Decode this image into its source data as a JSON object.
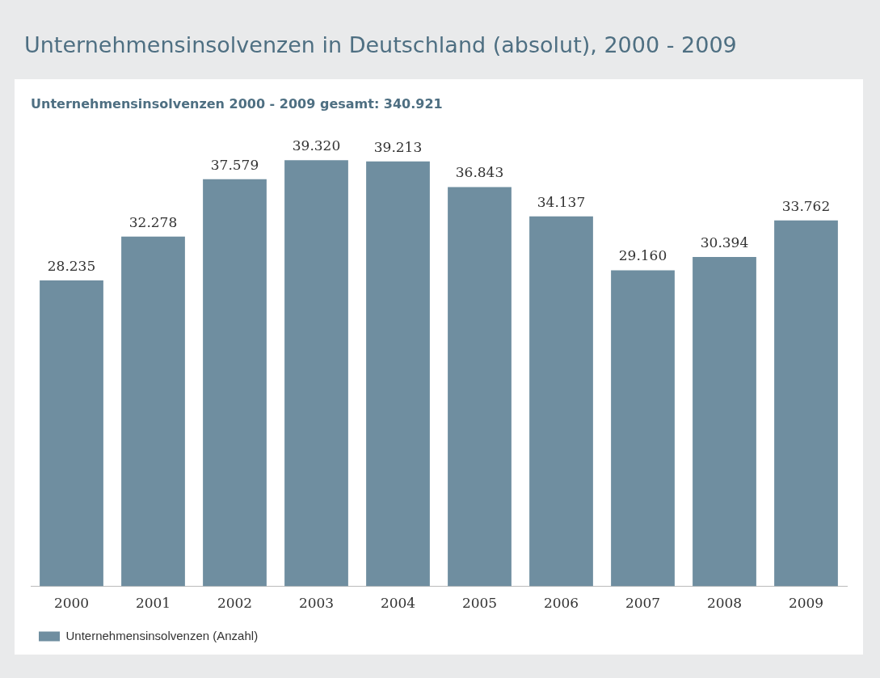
{
  "chart_data": {
    "type": "bar",
    "title": "Unternehmensinsolvenzen in Deutschland (absolut), 2000 - 2009",
    "subtitle": "Unternehmensinsolvenzen 2000 - 2009 gesamt: 340.921",
    "categories": [
      "2000",
      "2001",
      "2002",
      "2003",
      "2004",
      "2005",
      "2006",
      "2007",
      "2008",
      "2009"
    ],
    "series": [
      {
        "name": "Unternehmensinsolvenzen (Anzahl)",
        "color": "#6f8ea0",
        "values": [
          28235,
          32278,
          37579,
          39320,
          39213,
          36843,
          34137,
          29160,
          30394,
          33762
        ],
        "value_labels": [
          "28.235",
          "32.278",
          "37.579",
          "39.320",
          "39.213",
          "36.843",
          "34.137",
          "29.160",
          "30.394",
          "33.762"
        ]
      }
    ],
    "legend": "bottom left",
    "grid": false
  }
}
